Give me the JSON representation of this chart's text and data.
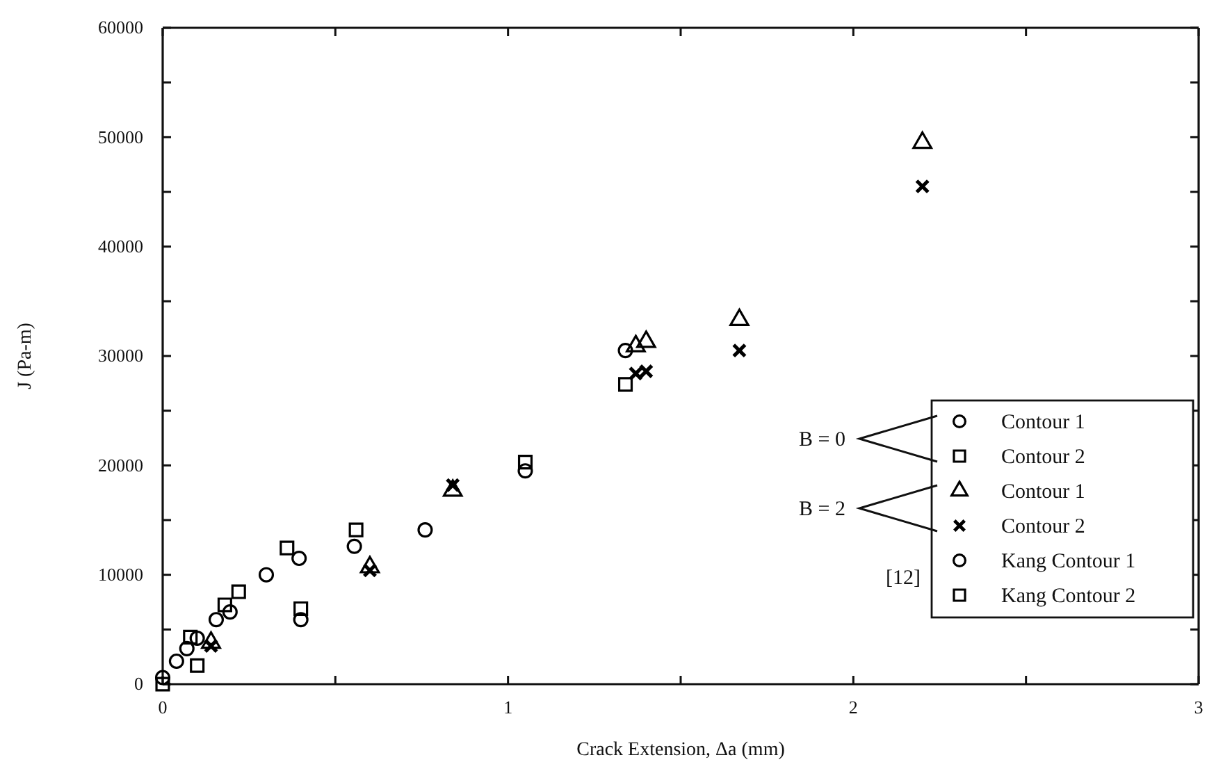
{
  "chart_data": {
    "type": "scatter",
    "xlabel": "Crack Extension, Δa  (mm)",
    "ylabel": "J  (Pa-m)",
    "xlim": [
      0,
      3
    ],
    "xticks": [
      0,
      {
        "value": 0.5,
        "label": null
      },
      1,
      {
        "value": 1.5,
        "label": null
      },
      2,
      {
        "value": 2.5,
        "label": null
      },
      3
    ],
    "ylim": [
      0,
      60000
    ],
    "yticks": [
      0,
      {
        "value": 5000,
        "label": null
      },
      10000,
      {
        "value": 15000,
        "label": null
      },
      20000,
      {
        "value": 25000,
        "label": null
      },
      30000,
      {
        "value": 35000,
        "label": null
      },
      40000,
      {
        "value": 45000,
        "label": null
      },
      50000,
      {
        "value": 55000,
        "label": null
      },
      60000
    ],
    "grid": false,
    "legend": "bottom right",
    "annotations": [
      "B = 0",
      "B = 2",
      "[12]"
    ],
    "series": [
      {
        "name": "Contour 1",
        "color": "#000000",
        "marker": "circle",
        "x": [
          0,
          0.4,
          1.05,
          1.34
        ],
        "values": [
          600,
          5900,
          19500,
          30500
        ]
      },
      {
        "name": "Contour 2",
        "color": "#000000",
        "marker": "square",
        "x": [
          0,
          0.1,
          0.4,
          1.05,
          1.34
        ],
        "values": [
          0,
          1700,
          6900,
          20300,
          27400
        ]
      },
      {
        "name": "Contour 1",
        "color": "#000000",
        "marker": "triangle",
        "x": [
          0.14,
          0.6,
          0.84,
          1.37,
          1.4,
          1.67,
          2.2
        ],
        "values": [
          3800,
          10700,
          17700,
          30900,
          31300,
          33300,
          49500
        ]
      },
      {
        "name": "Contour 2",
        "color": "#000000",
        "marker": "cross",
        "x": [
          0.14,
          0.6,
          0.84,
          1.37,
          1.4,
          1.67,
          2.2
        ],
        "values": [
          3500,
          10400,
          18200,
          28400,
          28600,
          30500,
          45500
        ]
      },
      {
        "name": "Kang Contour 1",
        "color": "#000000",
        "marker": "circle",
        "x": [
          0.04,
          0.07,
          0.1,
          0.155,
          0.195,
          0.3,
          0.395,
          0.555,
          0.76
        ],
        "values": [
          2100,
          3250,
          4200,
          5900,
          6600,
          10000,
          11500,
          12600,
          14100
        ]
      },
      {
        "name": "Kang Contour 2",
        "color": "#000000",
        "marker": "square",
        "x": [
          0.08,
          0.18,
          0.22,
          0.36,
          0.56
        ],
        "values": [
          4300,
          7250,
          8450,
          12450,
          14100
        ]
      }
    ]
  }
}
